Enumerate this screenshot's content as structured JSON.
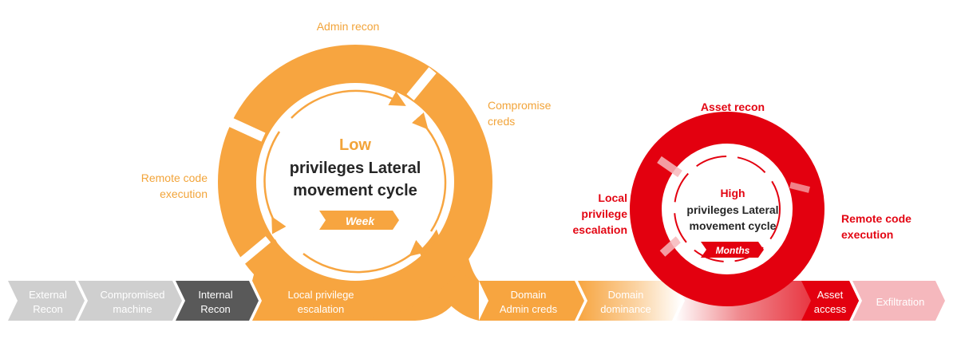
{
  "colors": {
    "orange": "#f7a540",
    "orange_text": "#f2a43a",
    "red": "#e3000f",
    "red_text": "#e30613",
    "light_red": "#f5b8bd",
    "gray_light": "#cfcfcf",
    "gray_dark": "#595959",
    "title_dark": "#262626"
  },
  "low_cycle": {
    "title_line1": "Low",
    "title_line2": "privileges Lateral",
    "title_line3": "movement cycle",
    "badge": "Week",
    "labels": {
      "admin_recon": "Admin recon",
      "compromise_creds_1": "Compromise",
      "compromise_creds_2": "creds",
      "remote_code_1": "Remote code",
      "remote_code_2": "execution"
    }
  },
  "high_cycle": {
    "title_line1": "High",
    "title_line2": "privileges Lateral",
    "title_line3": "movement cycle",
    "badge": "Months",
    "labels": {
      "asset_recon": "Asset recon",
      "local_priv_1": "Local",
      "local_priv_2": "privilege",
      "local_priv_3": "escalation",
      "remote_code_1": "Remote code",
      "remote_code_2": "execution"
    }
  },
  "stages": [
    {
      "line1": "External",
      "line2": "Recon"
    },
    {
      "line1": "Compromised",
      "line2": "machine"
    },
    {
      "line1": "Internal",
      "line2": "Recon"
    },
    {
      "line1": "Local privilege",
      "line2": "escalation"
    },
    {
      "line1": "Domain",
      "line2": "Admin creds"
    },
    {
      "line1": "Domain",
      "line2": "dominance"
    },
    {
      "line1": "Asset",
      "line2": "access"
    },
    {
      "line1": "Exfiltration",
      "line2": ""
    }
  ]
}
